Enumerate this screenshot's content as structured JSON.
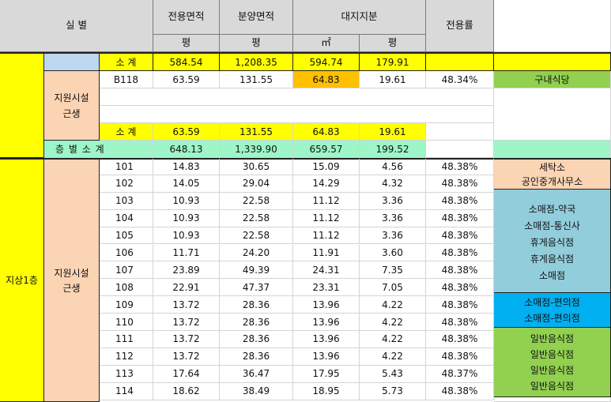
{
  "header": {
    "room": "실    별",
    "exclusive_area": "전용면적",
    "sale_area": "분양면적",
    "land_share": "대지지분",
    "exclusive_rate": "전용률",
    "unit_pyeong": "평",
    "unit_sqm": "㎡"
  },
  "basement": {
    "subtotal_label": "소   계",
    "subtotal": [
      "584.54",
      "1,208.35",
      "594.74",
      "179.91"
    ],
    "support_label_1": "지원시설",
    "support_label_2": "근생",
    "unit": {
      "id": "B118",
      "excl": "63.59",
      "sale": "131.55",
      "land_sqm": "64.83",
      "land_py": "19.61",
      "rate": "48.34%",
      "use": "구내식당"
    },
    "sub2_label": "소   계",
    "sub2": [
      "63.59",
      "131.55",
      "64.83",
      "19.61"
    ]
  },
  "floor_subtotal": {
    "label": "층 별 소 계",
    "values": [
      "648.13",
      "1,339.90",
      "659.57",
      "199.52"
    ]
  },
  "floor1": {
    "floor_label": "지상1층",
    "support_label_1": "지원시설",
    "support_label_2": "근생",
    "rows": [
      {
        "id": "101",
        "excl": "14.83",
        "sale": "30.65",
        "land_sqm": "15.09",
        "land_py": "4.56",
        "rate": "48.38%"
      },
      {
        "id": "102",
        "excl": "14.05",
        "sale": "29.04",
        "land_sqm": "14.29",
        "land_py": "4.32",
        "rate": "48.38%"
      },
      {
        "id": "103",
        "excl": "10.93",
        "sale": "22.58",
        "land_sqm": "11.12",
        "land_py": "3.36",
        "rate": "48.38%"
      },
      {
        "id": "104",
        "excl": "10.93",
        "sale": "22.58",
        "land_sqm": "11.12",
        "land_py": "3.36",
        "rate": "48.38%"
      },
      {
        "id": "105",
        "excl": "10.93",
        "sale": "22.58",
        "land_sqm": "11.12",
        "land_py": "3.36",
        "rate": "48.38%"
      },
      {
        "id": "106",
        "excl": "11.71",
        "sale": "24.20",
        "land_sqm": "11.91",
        "land_py": "3.60",
        "rate": "48.38%"
      },
      {
        "id": "107",
        "excl": "23.89",
        "sale": "49.39",
        "land_sqm": "24.31",
        "land_py": "7.35",
        "rate": "48.38%"
      },
      {
        "id": "108",
        "excl": "22.91",
        "sale": "47.37",
        "land_sqm": "23.31",
        "land_py": "7.05",
        "rate": "48.38%"
      },
      {
        "id": "109",
        "excl": "13.72",
        "sale": "28.36",
        "land_sqm": "13.96",
        "land_py": "4.22",
        "rate": "48.38%"
      },
      {
        "id": "110",
        "excl": "13.72",
        "sale": "28.36",
        "land_sqm": "13.96",
        "land_py": "4.22",
        "rate": "48.38%"
      },
      {
        "id": "111",
        "excl": "13.72",
        "sale": "28.36",
        "land_sqm": "13.96",
        "land_py": "4.22",
        "rate": "48.38%"
      },
      {
        "id": "112",
        "excl": "13.72",
        "sale": "28.36",
        "land_sqm": "13.96",
        "land_py": "4.22",
        "rate": "48.38%"
      },
      {
        "id": "113",
        "excl": "17.64",
        "sale": "36.47",
        "land_sqm": "17.95",
        "land_py": "5.43",
        "rate": "48.37%"
      },
      {
        "id": "114",
        "excl": "18.62",
        "sale": "38.49",
        "land_sqm": "18.95",
        "land_py": "5.73",
        "rate": "48.38%"
      }
    ],
    "use_notes": {
      "group_a": [
        "세탁소",
        "공인중개사무소"
      ],
      "group_b": [
        "소매점-약국",
        "소매점-통신사",
        "휴게음식점",
        "휴게음식점",
        "소매점"
      ],
      "group_c": [
        "소매점-편의점",
        "소매점-편의점"
      ],
      "group_d": [
        "일반음식점",
        "일반음식점",
        "일반음식점",
        "일반음식점"
      ]
    }
  }
}
